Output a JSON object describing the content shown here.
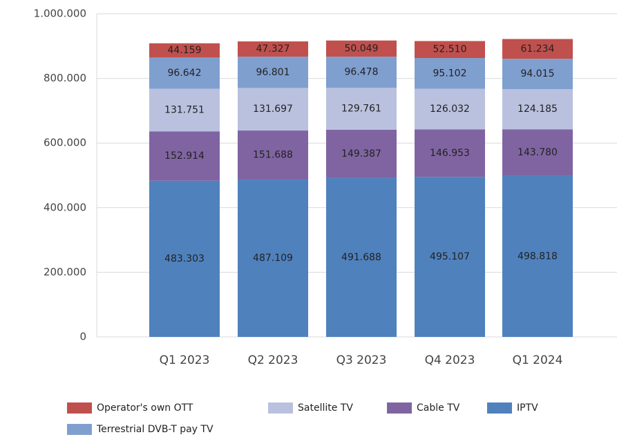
{
  "chart_data": {
    "type": "stacked_bar",
    "categories": [
      "Q1 2023",
      "Q2 2023",
      "Q3 2023",
      "Q4 2023",
      "Q1 2024"
    ],
    "series": [
      {
        "name": "Operator's own OTT",
        "color": "#c0504d",
        "values": [
          44159,
          47327,
          50049,
          52510,
          61234
        ],
        "value_labels": [
          "44.159",
          "47.327",
          "50.049",
          "52.510",
          "61.234"
        ]
      },
      {
        "name": "Satellite TV",
        "color": "#b9c1de",
        "values": [
          131751,
          131697,
          129761,
          126032,
          124185
        ],
        "value_labels": [
          "131.751",
          "131.697",
          "129.761",
          "126.032",
          "124.185"
        ]
      },
      {
        "name": "Cable TV",
        "color": "#8064a2",
        "values": [
          152914,
          151688,
          149387,
          146953,
          143780
        ],
        "value_labels": [
          "152.914",
          "151.688",
          "149.387",
          "146.953",
          "143.780"
        ]
      },
      {
        "name": "IPTV",
        "color": "#4f81bd",
        "values": [
          483303,
          487109,
          491688,
          495107,
          498818
        ],
        "value_labels": [
          "483.303",
          "487.109",
          "491.688",
          "495.107",
          "498.818"
        ]
      },
      {
        "name": "Terrestrial DVB-T pay TV",
        "color": "#7f9fcf",
        "values": [
          96642,
          96801,
          96478,
          95102,
          94015
        ],
        "value_labels": [
          "96.642",
          "96.801",
          "96.478",
          "95.102",
          "94.015"
        ]
      }
    ],
    "ylim": [
      0,
      1000000
    ],
    "yticks": [
      0,
      {
        "value": 200000,
        "label": "200.000"
      },
      {
        "value": 400000,
        "label": "400.000"
      },
      {
        "value": 600000,
        "label": "600.000"
      },
      {
        "value": 800000,
        "label": "800.000"
      },
      {
        "value": 1000000,
        "label": "1.000.000"
      }
    ],
    "grid": true
  }
}
